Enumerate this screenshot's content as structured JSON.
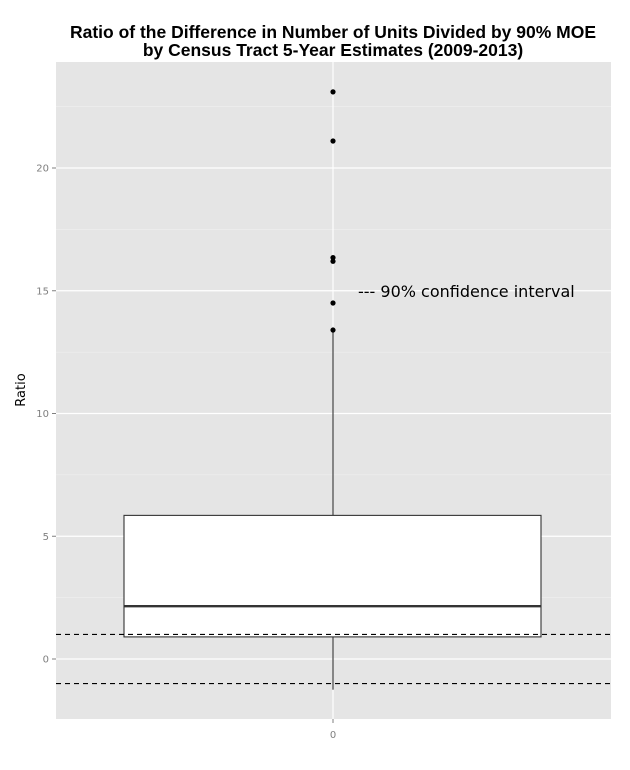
{
  "chart_data": {
    "type": "box",
    "title": [
      "Ratio of the Difference in Number of Units Divided by 90% MOE",
      "by Census Tract 5-Year Estimates (2009-2013)"
    ],
    "xlabel": "",
    "ylabel": "Ratio",
    "categories": [
      "0"
    ],
    "x_ticks": [
      "0"
    ],
    "y_ticks": [
      0,
      5,
      10,
      15,
      20
    ],
    "ylim": [
      -2.4,
      24.4
    ],
    "grid": true,
    "box": {
      "whisker_low": -1.25,
      "q1": 0.9,
      "median": 2.15,
      "q3": 5.85,
      "whisker_high": 13.3
    },
    "outliers": [
      13.4,
      14.5,
      16.2,
      16.35,
      21.1,
      23.1
    ],
    "reference_lines": [
      1,
      -1
    ],
    "annotation": "--- 90% confidence interval"
  }
}
